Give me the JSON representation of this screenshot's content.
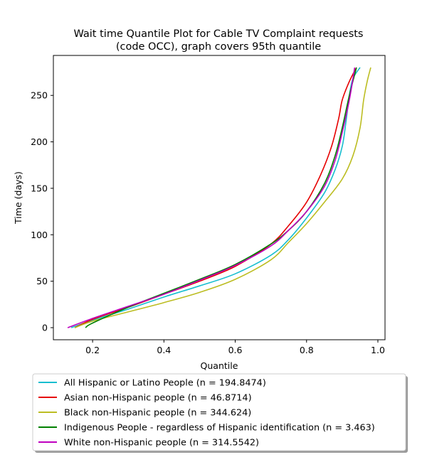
{
  "chart_data": {
    "type": "line",
    "title": "Wait time Quantile Plot for Cable TV Complaint  requests\n(code OCC), graph covers 95th quantile",
    "xlabel": "Quantile",
    "ylabel": "Time (days)",
    "xlim": [
      0.09,
      1.02
    ],
    "ylim": [
      -13,
      293
    ],
    "xticks": [
      0.2,
      0.4,
      0.6,
      0.8,
      1.0
    ],
    "xtick_labels": [
      "0.2",
      "0.4",
      "0.6",
      "0.8",
      "1.0"
    ],
    "yticks": [
      0,
      50,
      100,
      150,
      200,
      250
    ],
    "ytick_labels": [
      "0",
      "50",
      "100",
      "150",
      "200",
      "250"
    ],
    "grid": false,
    "legend_position": "below",
    "series": [
      {
        "name": "All Hispanic or Latino People (n = 194.8474)",
        "color": "#17becf",
        "x": [
          0.14,
          0.2,
          0.3,
          0.4,
          0.5,
          0.6,
          0.7,
          0.75,
          0.8,
          0.85,
          0.88,
          0.9,
          0.91,
          0.92,
          0.93,
          0.95
        ],
        "y": [
          0,
          8,
          20,
          33,
          45,
          58,
          78,
          95,
          118,
          145,
          170,
          195,
          220,
          250,
          268,
          280
        ]
      },
      {
        "name": "Asian non-Hispanic people (n = 46.8714)",
        "color": "#e60000",
        "x": [
          0.15,
          0.2,
          0.3,
          0.4,
          0.5,
          0.6,
          0.7,
          0.75,
          0.8,
          0.84,
          0.87,
          0.89,
          0.9,
          0.92,
          0.94
        ],
        "y": [
          0,
          9,
          22,
          36,
          50,
          66,
          90,
          110,
          135,
          165,
          195,
          225,
          245,
          265,
          280
        ]
      },
      {
        "name": "Black non-Hispanic people (n = 344.624)",
        "color": "#bcbd22",
        "x": [
          0.15,
          0.2,
          0.3,
          0.4,
          0.5,
          0.6,
          0.7,
          0.75,
          0.8,
          0.85,
          0.9,
          0.93,
          0.95,
          0.96,
          0.97,
          0.98
        ],
        "y": [
          0,
          7,
          17,
          27,
          38,
          52,
          73,
          92,
          112,
          135,
          160,
          185,
          215,
          245,
          265,
          280
        ]
      },
      {
        "name": "Indigenous People - regardless of Hispanic identification (n = 3.463)",
        "color": "#008000",
        "x": [
          0.18,
          0.2,
          0.3,
          0.4,
          0.5,
          0.6,
          0.7,
          0.75,
          0.8,
          0.85,
          0.88,
          0.9,
          0.92,
          0.94
        ],
        "y": [
          0,
          5,
          22,
          37,
          52,
          68,
          90,
          105,
          125,
          155,
          185,
          215,
          250,
          280
        ]
      },
      {
        "name": "White non-Hispanic people (n = 314.5542)",
        "color": "#bf00bf",
        "x": [
          0.13,
          0.2,
          0.3,
          0.4,
          0.5,
          0.6,
          0.7,
          0.75,
          0.8,
          0.85,
          0.88,
          0.9,
          0.92,
          0.935
        ],
        "y": [
          0,
          10,
          23,
          36,
          51,
          67,
          88,
          105,
          125,
          152,
          180,
          210,
          245,
          280
        ]
      }
    ]
  }
}
